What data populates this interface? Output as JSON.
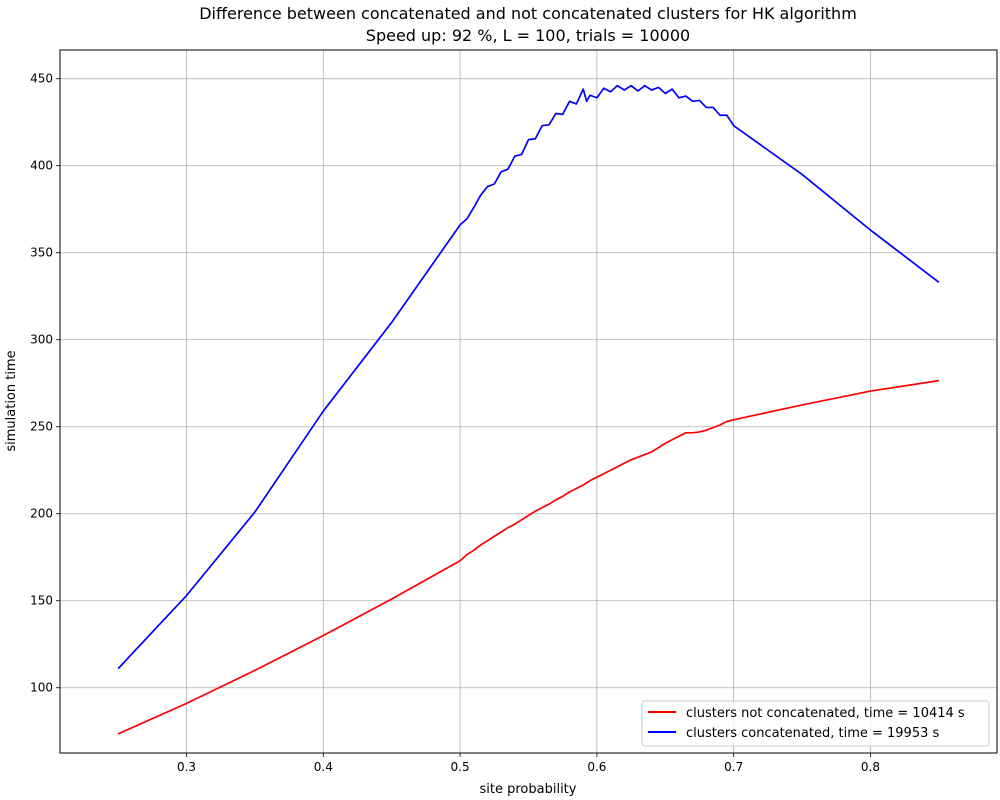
{
  "chart_data": {
    "type": "line",
    "title": "Difference between concatenated and not concatenated clusters for HK algorithm",
    "subtitle": "Speed up: 92 %, L = 100, trials = 10000",
    "xlabel": "site probability",
    "ylabel": "simulation time",
    "xlim": [
      0.2075,
      0.8925
    ],
    "ylim": [
      62.5,
      466.5
    ],
    "x_ticks": [
      0.3,
      0.4,
      0.5,
      0.6,
      0.7,
      0.8
    ],
    "x_tick_labels": [
      "0.3",
      "0.4",
      "0.5",
      "0.6",
      "0.7",
      "0.8"
    ],
    "y_ticks": [
      100,
      150,
      200,
      250,
      300,
      350,
      400,
      450
    ],
    "y_tick_labels": [
      "100",
      "150",
      "200",
      "250",
      "300",
      "350",
      "400",
      "450"
    ],
    "grid": true,
    "legend_position": "bottom-right",
    "series": [
      {
        "name": "clusters not concatenated, time = 10414 s",
        "color": "#ff0000",
        "x": [
          0.25,
          0.3,
          0.35,
          0.4,
          0.45,
          0.5,
          0.505,
          0.51,
          0.515,
          0.52,
          0.525,
          0.53,
          0.535,
          0.54,
          0.545,
          0.55,
          0.555,
          0.56,
          0.565,
          0.57,
          0.575,
          0.58,
          0.585,
          0.59,
          0.595,
          0.6,
          0.605,
          0.61,
          0.615,
          0.62,
          0.625,
          0.63,
          0.635,
          0.64,
          0.645,
          0.65,
          0.655,
          0.66,
          0.665,
          0.67,
          0.675,
          0.68,
          0.685,
          0.69,
          0.695,
          0.7,
          0.75,
          0.8,
          0.85
        ],
        "y": [
          73.5,
          91,
          110,
          130,
          151,
          173,
          176.5,
          179,
          182,
          184.5,
          187,
          189.5,
          192,
          194,
          196.5,
          199,
          201.5,
          203.5,
          205.5,
          208,
          210,
          212.5,
          214.5,
          216.5,
          219,
          221,
          223,
          225,
          227,
          229,
          231,
          232.5,
          234,
          235.5,
          238,
          240.5,
          242.5,
          244.5,
          246.5,
          246.5,
          247,
          248,
          249.5,
          251,
          253,
          254,
          262.5,
          270.5,
          276.5
        ]
      },
      {
        "name": "clusters concatenated, time = 19953 s",
        "color": "#0000ff",
        "x": [
          0.25,
          0.3,
          0.35,
          0.4,
          0.45,
          0.5,
          0.505,
          0.51,
          0.515,
          0.52,
          0.525,
          0.53,
          0.535,
          0.54,
          0.545,
          0.55,
          0.555,
          0.56,
          0.565,
          0.57,
          0.575,
          0.58,
          0.585,
          0.59,
          0.5925,
          0.595,
          0.6,
          0.605,
          0.61,
          0.615,
          0.62,
          0.625,
          0.63,
          0.635,
          0.64,
          0.645,
          0.65,
          0.655,
          0.66,
          0.665,
          0.67,
          0.675,
          0.68,
          0.685,
          0.69,
          0.695,
          0.7,
          0.75,
          0.8,
          0.85
        ],
        "y": [
          111,
          153,
          201,
          259,
          310,
          366,
          369.5,
          376,
          383,
          388,
          389.5,
          396.5,
          398,
          405.5,
          406.5,
          415,
          415.5,
          423,
          423.5,
          430,
          429.5,
          437,
          435.5,
          444,
          437,
          440.5,
          439,
          444.5,
          442.5,
          446,
          443.5,
          446,
          443,
          446,
          443.5,
          445,
          441.5,
          444,
          439,
          440,
          437,
          437.5,
          433.5,
          433.5,
          429,
          429,
          423,
          395,
          363,
          333
        ]
      }
    ]
  }
}
